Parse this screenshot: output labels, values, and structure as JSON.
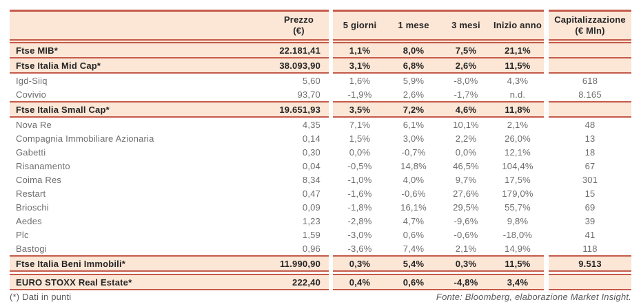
{
  "colors": {
    "accent_border": "#c45a4a",
    "highlight_bg": "#fce6d6",
    "bold_text": "#262626",
    "regular_text": "#6e6e6e"
  },
  "table": {
    "header": {
      "name": "",
      "price": "Prezzo\n(€)",
      "d5": "5 giorni",
      "m1": "1 mese",
      "m3": "3 mesi",
      "ytd": "Inizio anno",
      "cap": "Capitalizzazione\n(€ Mln)"
    },
    "rows": [
      {
        "name": "Ftse MIB*",
        "price": "22.181,41",
        "d5": "1,1%",
        "m1": "8,0%",
        "m3": "7,5%",
        "ytd": "21,1%",
        "cap": "",
        "highlight": true,
        "border_top": true
      },
      {
        "name": "Ftse Italia Mid Cap*",
        "price": "38.093,90",
        "d5": "3,1%",
        "m1": "6,8%",
        "m3": "2,6%",
        "ytd": "11,5%",
        "cap": "",
        "highlight": true
      },
      {
        "name": "Igd-Siiq",
        "price": "5,60",
        "d5": "1,6%",
        "m1": "5,9%",
        "m3": "-8,0%",
        "ytd": "4,3%",
        "cap": "618"
      },
      {
        "name": "Covivio",
        "price": "93,70",
        "d5": "-1,9%",
        "m1": "2,6%",
        "m3": "-1,7%",
        "ytd": "n.d.",
        "cap": "8.165"
      },
      {
        "name": "Ftse Italia Small Cap*",
        "price": "19.651,93",
        "d5": "3,5%",
        "m1": "7,2%",
        "m3": "4,6%",
        "ytd": "11,8%",
        "cap": "",
        "highlight": true,
        "border_top": true
      },
      {
        "name": "Nova Re",
        "price": "4,35",
        "d5": "7,1%",
        "m1": "6,1%",
        "m3": "10,1%",
        "ytd": "2,1%",
        "cap": "48"
      },
      {
        "name": "Compagnia Immobiliare Azionaria",
        "price": "0,14",
        "d5": "1,5%",
        "m1": "3,0%",
        "m3": "2,2%",
        "ytd": "26,0%",
        "cap": "13"
      },
      {
        "name": "Gabetti",
        "price": "0,30",
        "d5": "0,0%",
        "m1": "-0,7%",
        "m3": "0,0%",
        "ytd": "12,1%",
        "cap": "18"
      },
      {
        "name": "Risanamento",
        "price": "0,04",
        "d5": "-0,5%",
        "m1": "14,8%",
        "m3": "46,5%",
        "ytd": "104,4%",
        "cap": "67"
      },
      {
        "name": "Coima Res",
        "price": "8,34",
        "d5": "-1,0%",
        "m1": "4,0%",
        "m3": "9,7%",
        "ytd": "17,5%",
        "cap": "301"
      },
      {
        "name": "Restart",
        "price": "0,47",
        "d5": "-1,6%",
        "m1": "-0,6%",
        "m3": "27,6%",
        "ytd": "179,0%",
        "cap": "15"
      },
      {
        "name": "Brioschi",
        "price": "0,09",
        "d5": "-1,8%",
        "m1": "16,1%",
        "m3": "29,5%",
        "ytd": "55,7%",
        "cap": "69"
      },
      {
        "name": "Aedes",
        "price": "1,23",
        "d5": "-2,8%",
        "m1": "4,7%",
        "m3": "-9,6%",
        "ytd": "9,8%",
        "cap": "39"
      },
      {
        "name": "Plc",
        "price": "1,59",
        "d5": "-3,0%",
        "m1": "0,6%",
        "m3": "-0,6%",
        "ytd": "-18,0%",
        "cap": "41"
      },
      {
        "name": "Bastogi",
        "price": "0,96",
        "d5": "-3,6%",
        "m1": "7,4%",
        "m3": "2,1%",
        "ytd": "14,9%",
        "cap": "118"
      },
      {
        "name": "Ftse Italia Beni Immobili*",
        "price": "11.990,90",
        "d5": "0,3%",
        "m1": "5,4%",
        "m3": "0,3%",
        "ytd": "11,5%",
        "cap": "9.513",
        "highlight": true,
        "border_top": true
      },
      {
        "name": "EURO STOXX Real Estate*",
        "price": "222,40",
        "d5": "0,4%",
        "m1": "0,6%",
        "m3": "-4,8%",
        "ytd": "3,4%",
        "cap": "",
        "highlight": true,
        "border_top": true,
        "gap_before": true
      }
    ]
  },
  "footer": {
    "note": "(*) Dati in punti",
    "source": "Fonte: Bloomberg, elaborazione Market Insight."
  },
  "chart_data": {
    "type": "table",
    "columns": [
      "",
      "Prezzo (€)",
      "5 giorni",
      "1 mese",
      "3 mesi",
      "Inizio anno",
      "Capitalizzazione (€ Mln)"
    ],
    "rows": [
      [
        "Ftse MIB*",
        "22.181,41",
        "1,1%",
        "8,0%",
        "7,5%",
        "21,1%",
        ""
      ],
      [
        "Ftse Italia Mid Cap*",
        "38.093,90",
        "3,1%",
        "6,8%",
        "2,6%",
        "11,5%",
        ""
      ],
      [
        "Igd-Siiq",
        "5,60",
        "1,6%",
        "5,9%",
        "-8,0%",
        "4,3%",
        "618"
      ],
      [
        "Covivio",
        "93,70",
        "-1,9%",
        "2,6%",
        "-1,7%",
        "n.d.",
        "8.165"
      ],
      [
        "Ftse Italia Small Cap*",
        "19.651,93",
        "3,5%",
        "7,2%",
        "4,6%",
        "11,8%",
        ""
      ],
      [
        "Nova Re",
        "4,35",
        "7,1%",
        "6,1%",
        "10,1%",
        "2,1%",
        "48"
      ],
      [
        "Compagnia Immobiliare Azionaria",
        "0,14",
        "1,5%",
        "3,0%",
        "2,2%",
        "26,0%",
        "13"
      ],
      [
        "Gabetti",
        "0,30",
        "0,0%",
        "-0,7%",
        "0,0%",
        "12,1%",
        "18"
      ],
      [
        "Risanamento",
        "0,04",
        "-0,5%",
        "14,8%",
        "46,5%",
        "104,4%",
        "67"
      ],
      [
        "Coima Res",
        "8,34",
        "-1,0%",
        "4,0%",
        "9,7%",
        "17,5%",
        "301"
      ],
      [
        "Restart",
        "0,47",
        "-1,6%",
        "-0,6%",
        "27,6%",
        "179,0%",
        "15"
      ],
      [
        "Brioschi",
        "0,09",
        "-1,8%",
        "16,1%",
        "29,5%",
        "55,7%",
        "69"
      ],
      [
        "Aedes",
        "1,23",
        "-2,8%",
        "4,7%",
        "-9,6%",
        "9,8%",
        "39"
      ],
      [
        "Plc",
        "1,59",
        "-3,0%",
        "0,6%",
        "-0,6%",
        "-18,0%",
        "41"
      ],
      [
        "Bastogi",
        "0,96",
        "-3,6%",
        "7,4%",
        "2,1%",
        "14,9%",
        "118"
      ],
      [
        "Ftse Italia Beni Immobili*",
        "11.990,90",
        "0,3%",
        "5,4%",
        "0,3%",
        "11,5%",
        "9.513"
      ],
      [
        "EURO STOXX Real Estate*",
        "222,40",
        "0,4%",
        "0,6%",
        "-4,8%",
        "3,4%",
        ""
      ]
    ]
  }
}
